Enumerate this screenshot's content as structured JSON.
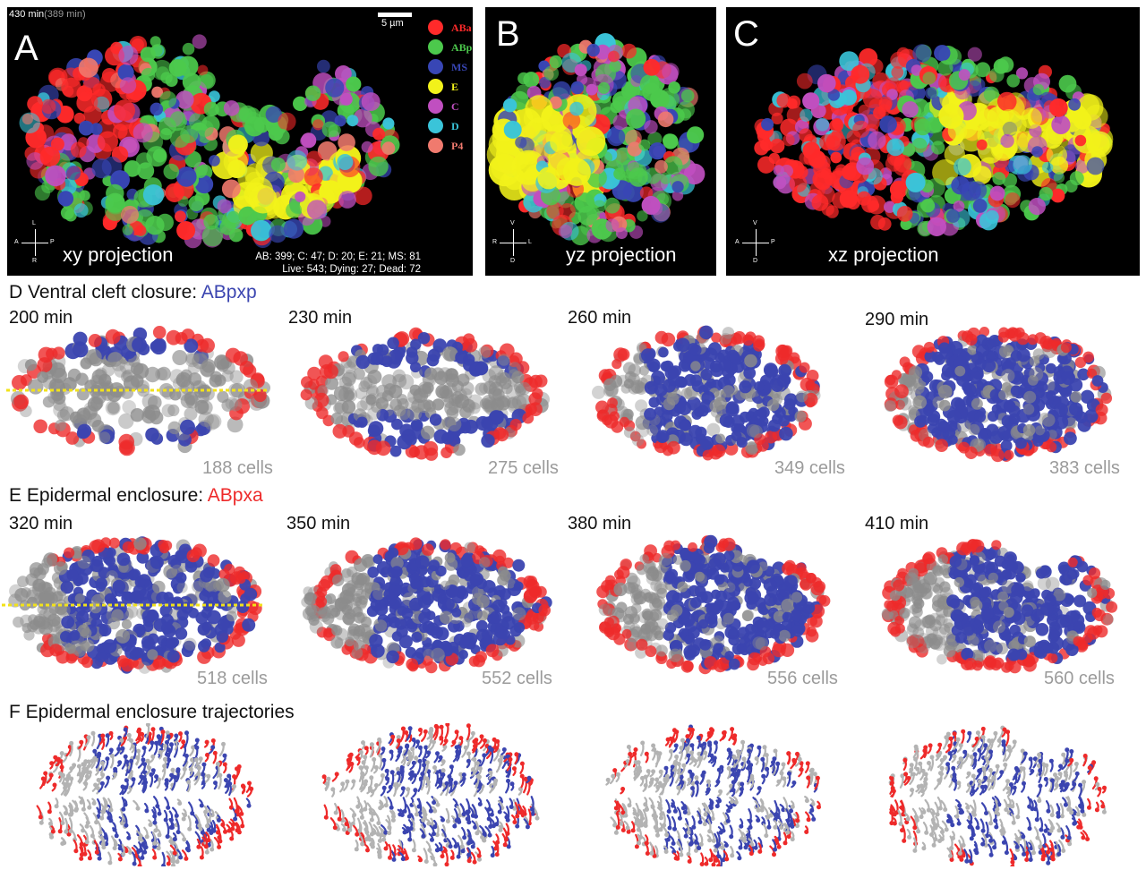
{
  "panels": {
    "a": {
      "letter": "A",
      "projection": "xy projection",
      "time_main": "430 min",
      "time_sub": "(389 min)",
      "scale_label": "5 µm",
      "axes": {
        "top": "L",
        "bottom": "R",
        "left": "A",
        "right": "P"
      },
      "counts_line1": "AB: 399; C:  47; D:  20; E:  21; MS:  81",
      "counts_line2": "Live: 543; Dying:  27; Dead:  72"
    },
    "b": {
      "letter": "B",
      "projection": "yz projection",
      "axes": {
        "top": "V",
        "bottom": "D",
        "left": "R",
        "right": "L"
      }
    },
    "c": {
      "letter": "C",
      "projection": "xz projection",
      "axes": {
        "top": "V",
        "bottom": "D",
        "left": "A",
        "right": "P"
      }
    }
  },
  "legend": [
    {
      "label": "ABa",
      "color": "#ff2a2a"
    },
    {
      "label": "ABp",
      "color": "#4cc94c"
    },
    {
      "label": "MS",
      "color": "#3846b5"
    },
    {
      "label": "E",
      "color": "#f2f21a"
    },
    {
      "label": "C",
      "color": "#c04fc0"
    },
    {
      "label": "D",
      "color": "#3ac4d9"
    },
    {
      "label": "P4",
      "color": "#f07a6e"
    }
  ],
  "rows": {
    "d": {
      "prefix": "D Ventral cleft closure: ",
      "lineage": "ABpxp",
      "lineage_color": "#3b45b0",
      "frames": [
        {
          "time": "200 min",
          "count": "188 cells"
        },
        {
          "time": "230 min",
          "count": "275 cells"
        },
        {
          "time": "260 min",
          "count": "349 cells"
        },
        {
          "time": "290 min",
          "count": "383 cells"
        }
      ]
    },
    "e": {
      "prefix": "E Epidermal enclosure: ",
      "lineage": "ABpxa",
      "lineage_color": "#ee2a2a",
      "frames": [
        {
          "time": "320 min",
          "count": "518 cells"
        },
        {
          "time": "350 min",
          "count": "552 cells"
        },
        {
          "time": "380 min",
          "count": "556 cells"
        },
        {
          "time": "410 min",
          "count": "560 cells"
        }
      ]
    },
    "f": {
      "prefix": "F Epidermal enclosure trajectories"
    }
  },
  "colors": {
    "anterior_ab_red": "#ee2a2a",
    "posterior_ab_blue": "#3b45b0",
    "other_cells_gray": "#8c8c8c",
    "midline_yellow": "#f2e21a",
    "count_gray": "#9b9b9b"
  }
}
